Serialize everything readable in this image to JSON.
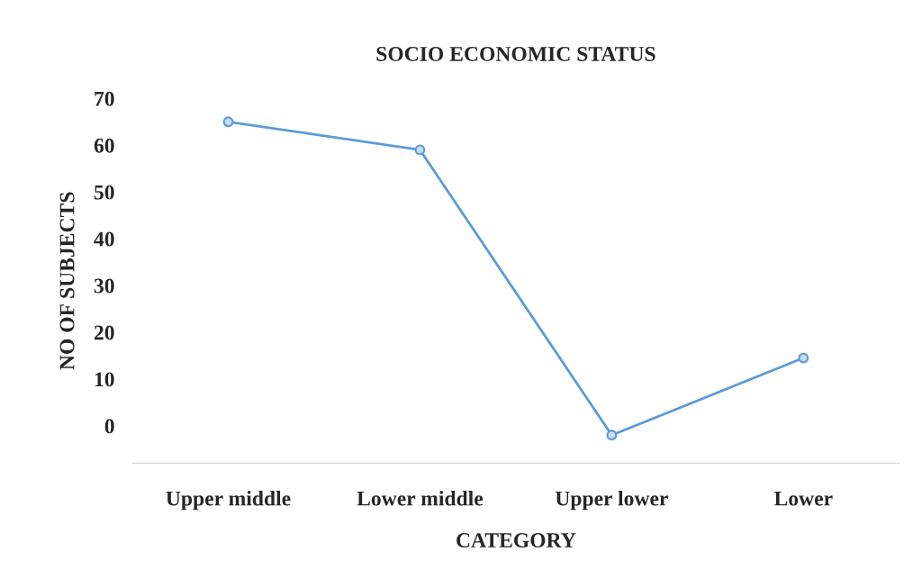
{
  "chart_data": {
    "type": "line",
    "title": "SOCIO ECONOMIC STATUS",
    "xlabel": "CATEGORY",
    "ylabel": "NO OF SUBJECTS",
    "categories": [
      "Upper middle",
      "Lower middle",
      "Upper lower",
      "Lower"
    ],
    "series": [
      {
        "color": "#5b9bd5",
        "values": [
          65,
          59,
          -2,
          14.5
        ]
      }
    ],
    "ylim": [
      -8,
      70
    ],
    "yticks": [
      0,
      10,
      20,
      30,
      40,
      50,
      60,
      70
    ],
    "grid": false,
    "legend": false,
    "marker": "circle",
    "line_style": "solid"
  }
}
